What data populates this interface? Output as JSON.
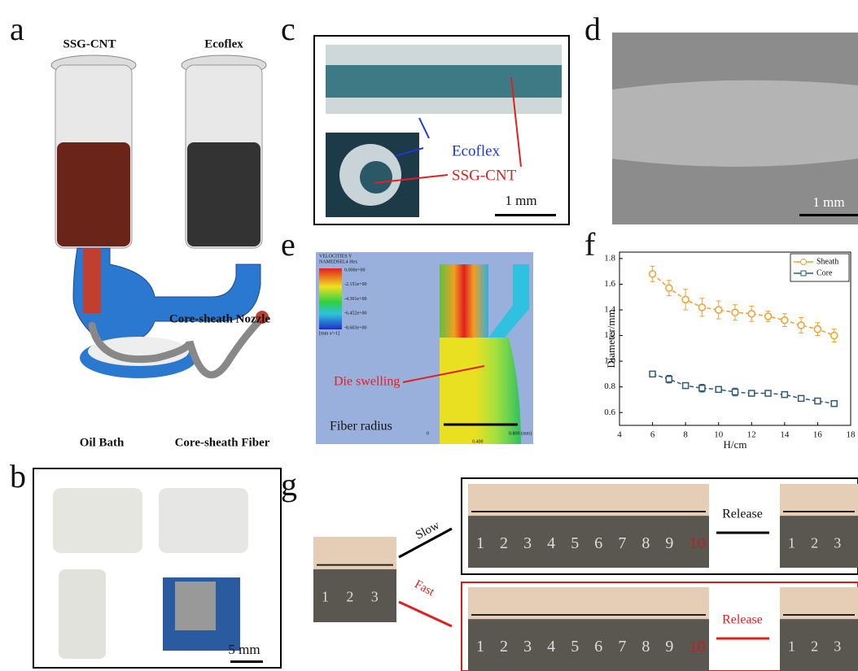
{
  "panels": {
    "a": {
      "label": "a",
      "syringe_left": "SSG-CNT",
      "syringe_right": "Ecoflex",
      "nozzle": "Core-sheath Nozzle",
      "bath": "Oil Bath",
      "fiber": "Core-sheath Fiber"
    },
    "b": {
      "label": "b",
      "scale": "5 mm"
    },
    "c": {
      "label": "c",
      "sheath": "Ecoflex",
      "core": "SSG-CNT",
      "scale": "1 mm"
    },
    "d": {
      "label": "d",
      "scale": "1 mm"
    },
    "e": {
      "label": "e",
      "title": [
        "VELOCITIES Y",
        "NAMEDSEL4 Hex"
      ],
      "colorbar": [
        "0.000e+00",
        "-2.151e+00",
        "-4.301e+00",
        "-6.452e+00",
        "-8.603e+00"
      ],
      "unit": "[mm s^-1]",
      "annotation": "Die swelling",
      "measure": "Fiber radius",
      "scale_ticks": [
        "0",
        "0.400",
        "0.800 (mm)"
      ]
    },
    "f": {
      "label": "f"
    },
    "g": {
      "label": "g",
      "slow": "Slow",
      "fast": "Fast",
      "release_top": "Release",
      "release_bottom": "Release",
      "ruler_short": [
        "1",
        "2",
        "3"
      ],
      "ruler_long": [
        "1",
        "2",
        "3",
        "4",
        "5",
        "6",
        "7",
        "8",
        "9",
        "10"
      ]
    }
  },
  "chart_data": {
    "type": "line",
    "x": [
      6,
      7,
      8,
      9,
      10,
      11,
      12,
      13,
      14,
      15,
      16,
      17
    ],
    "series": [
      {
        "name": "Sheath",
        "color": "#f0a030",
        "marker": "circle",
        "values": [
          1.68,
          1.57,
          1.48,
          1.42,
          1.4,
          1.38,
          1.37,
          1.35,
          1.32,
          1.28,
          1.25,
          1.2
        ],
        "errors": [
          0.06,
          0.06,
          0.08,
          0.07,
          0.07,
          0.06,
          0.06,
          0.04,
          0.05,
          0.06,
          0.05,
          0.05
        ]
      },
      {
        "name": "Core",
        "color": "#2e5a78",
        "marker": "square",
        "values": [
          0.9,
          0.86,
          0.81,
          0.79,
          0.78,
          0.76,
          0.75,
          0.75,
          0.74,
          0.71,
          0.69,
          0.67
        ],
        "errors": [
          0.02,
          0.03,
          0.02,
          0.03,
          0.02,
          0.03,
          0.02,
          0.02,
          0.02,
          0.01,
          0.01,
          0.02
        ]
      }
    ],
    "xlabel": "H/cm",
    "ylabel": "Diameter/mm",
    "xlim": [
      4,
      18
    ],
    "xticks": [
      4,
      6,
      8,
      10,
      12,
      14,
      16,
      18
    ],
    "ylim": [
      0.5,
      1.85
    ],
    "yticks": [
      0.6,
      0.8,
      {
        "value": 1,
        "label": "1.0"
      },
      1.2,
      1.4,
      1.6,
      1.8
    ],
    "legend": "upper right"
  }
}
